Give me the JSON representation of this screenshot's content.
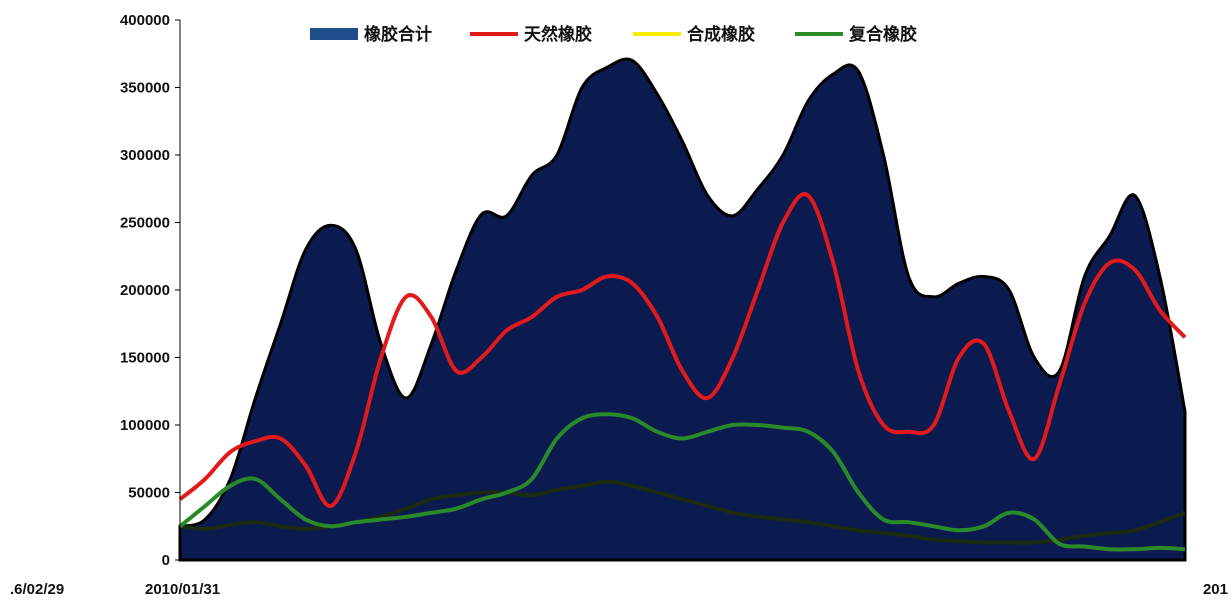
{
  "chart_data": {
    "type": "area",
    "title": "",
    "xlabel": "",
    "ylabel": "",
    "ylim": [
      0,
      400000
    ],
    "grid": false,
    "legend_position": "top",
    "y_ticks": [
      0,
      50000,
      100000,
      150000,
      200000,
      250000,
      300000,
      350000,
      400000
    ],
    "x_tick_labels": [
      ".6/02/29",
      "2010/01/31",
      "201"
    ],
    "colors": {
      "total": "#0b1a4f",
      "total_legend": "#1f4e8c",
      "natural": "#e31a1c",
      "synthetic": "#f5ec00",
      "composite": "#2a8a2a",
      "synthetic_line": "#1b2a10"
    },
    "series": [
      {
        "name": "橡胶合计",
        "key": "total",
        "values": [
          25000,
          30000,
          60000,
          120000,
          175000,
          230000,
          248000,
          230000,
          160000,
          120000,
          160000,
          215000,
          256000,
          255000,
          285000,
          300000,
          350000,
          365000,
          370000,
          345000,
          310000,
          270000,
          255000,
          275000,
          300000,
          340000,
          360000,
          362000,
          300000,
          210000,
          195000,
          205000,
          210000,
          200000,
          150000,
          140000,
          210000,
          240000,
          270000,
          210000,
          110000
        ]
      },
      {
        "name": "天然橡胶",
        "key": "natural",
        "values": [
          45000,
          60000,
          80000,
          88000,
          90000,
          70000,
          40000,
          80000,
          150000,
          195000,
          180000,
          140000,
          150000,
          170000,
          180000,
          195000,
          200000,
          210000,
          205000,
          180000,
          140000,
          120000,
          150000,
          200000,
          250000,
          270000,
          220000,
          140000,
          100000,
          95000,
          100000,
          150000,
          160000,
          110000,
          75000,
          130000,
          190000,
          220000,
          215000,
          185000,
          165000
        ]
      },
      {
        "name": "合成橡胶",
        "key": "synthetic",
        "values": [
          25000,
          23000,
          26000,
          28000,
          25000,
          23000,
          25000,
          28000,
          32000,
          38000,
          45000,
          48000,
          50000,
          50000,
          48000,
          52000,
          55000,
          58000,
          55000,
          50000,
          45000,
          40000,
          35000,
          32000,
          30000,
          28000,
          25000,
          22000,
          20000,
          18000,
          15000,
          14000,
          13000,
          13000,
          13000,
          15000,
          18000,
          20000,
          22000,
          28000,
          35000
        ]
      },
      {
        "name": "复合橡胶",
        "key": "composite",
        "values": [
          25000,
          40000,
          55000,
          60000,
          45000,
          30000,
          25000,
          28000,
          30000,
          32000,
          35000,
          38000,
          45000,
          50000,
          60000,
          90000,
          105000,
          108000,
          105000,
          95000,
          90000,
          95000,
          100000,
          100000,
          98000,
          95000,
          80000,
          50000,
          30000,
          28000,
          25000,
          22000,
          25000,
          35000,
          30000,
          12000,
          10000,
          8000,
          8000,
          9000,
          8000
        ]
      }
    ]
  }
}
